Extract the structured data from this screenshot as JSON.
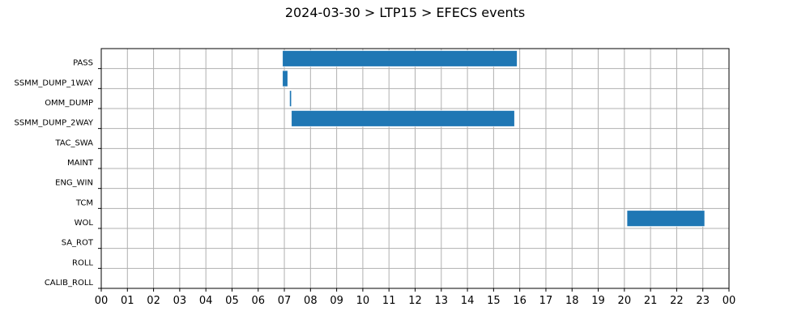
{
  "chart_data": {
    "type": "bar",
    "orientation": "horizontal",
    "title": "2024-03-30 > LTP15 > EFECS events",
    "xlabel": "",
    "ylabel": "",
    "xlim": [
      0,
      24
    ],
    "x_tick_labels": [
      "00",
      "01",
      "02",
      "03",
      "04",
      "05",
      "06",
      "07",
      "08",
      "09",
      "10",
      "11",
      "12",
      "13",
      "14",
      "15",
      "16",
      "17",
      "18",
      "19",
      "20",
      "21",
      "22",
      "23",
      "00"
    ],
    "categories": [
      "PASS",
      "SSMM_DUMP_1WAY",
      "OMM_DUMP",
      "SSMM_DUMP_2WAY",
      "TAC_SWA",
      "MAINT",
      "ENG_WIN",
      "TCM",
      "WOL",
      "SA_ROT",
      "ROLL",
      "CALIB_ROLL"
    ],
    "events": [
      {
        "category": "PASS",
        "start": 6.93,
        "end": 15.9
      },
      {
        "category": "SSMM_DUMP_1WAY",
        "start": 6.93,
        "end": 7.13
      },
      {
        "category": "OMM_DUMP",
        "start": 7.2,
        "end": 7.27
      },
      {
        "category": "SSMM_DUMP_2WAY",
        "start": 7.27,
        "end": 15.8
      },
      {
        "category": "WOL",
        "start": 20.1,
        "end": 23.07
      }
    ],
    "bar_color": "#1f77b4",
    "grid": true,
    "legend": "none"
  }
}
